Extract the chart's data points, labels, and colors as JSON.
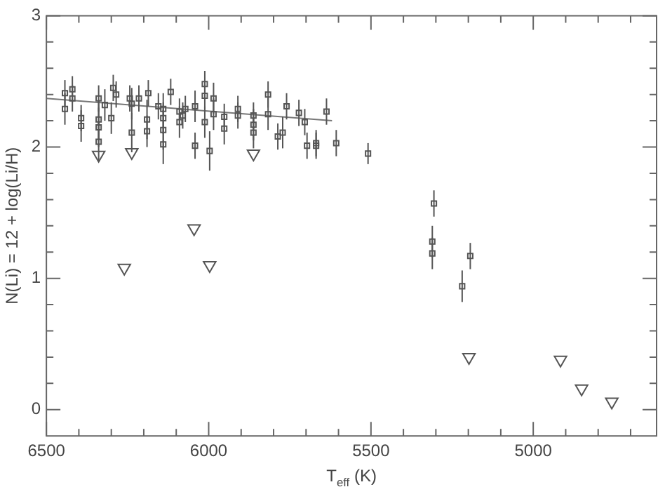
{
  "chart_data": {
    "type": "scatter",
    "xlabel": "T$_{eff}$ (K)",
    "ylabel": "N(Li) = 12 + log(Li/H)",
    "xlim": [
      6500,
      4620
    ],
    "ylim": [
      -0.2,
      3
    ],
    "xticks": [
      {
        "value": 6500,
        "label": "6500"
      },
      {
        "value": 6400,
        "label": null
      },
      {
        "value": 6300,
        "label": null
      },
      {
        "value": 6200,
        "label": null
      },
      {
        "value": 6100,
        "label": null
      },
      {
        "value": 6000,
        "label": "6000"
      },
      {
        "value": 5900,
        "label": null
      },
      {
        "value": 5800,
        "label": null
      },
      {
        "value": 5700,
        "label": null
      },
      {
        "value": 5600,
        "label": null
      },
      {
        "value": 5500,
        "label": "5500"
      },
      {
        "value": 5400,
        "label": null
      },
      {
        "value": 5300,
        "label": null
      },
      {
        "value": 5200,
        "label": null
      },
      {
        "value": 5100,
        "label": null
      },
      {
        "value": 5000,
        "label": "5000"
      },
      {
        "value": 4900,
        "label": null
      },
      {
        "value": 4800,
        "label": null
      },
      {
        "value": 4700,
        "label": null
      }
    ],
    "yticks": [
      0,
      {
        "value": 0.2,
        "label": null
      },
      {
        "value": 0.4,
        "label": null
      },
      {
        "value": 0.6,
        "label": null
      },
      {
        "value": 0.8,
        "label": null
      },
      1,
      {
        "value": 1.2,
        "label": null
      },
      {
        "value": 1.4,
        "label": null
      },
      {
        "value": 1.6,
        "label": null
      },
      {
        "value": 1.8,
        "label": null
      },
      2,
      {
        "value": 2.2,
        "label": null
      },
      {
        "value": 2.4,
        "label": null
      },
      {
        "value": 2.6,
        "label": null
      },
      {
        "value": 2.8,
        "label": null
      },
      3
    ],
    "series": [
      {
        "color": "#555555",
        "marker": "square",
        "x": [
          6443,
          6443,
          6420,
          6420,
          6393,
          6393,
          6339,
          6320,
          6339,
          6339,
          6339,
          6300,
          6294,
          6285,
          6243,
          6237,
          6237,
          6215,
          6186,
          6190,
          6190,
          6155,
          6140,
          6140,
          6140,
          6140,
          6117,
          6090,
          6090,
          6080,
          6072,
          6042,
          6042,
          6012,
          6012,
          6012,
          5997,
          5985,
          5985,
          5952,
          5952,
          5910,
          5910,
          5862,
          5862,
          5862,
          5817,
          5817,
          5787,
          5772,
          5760,
          5722,
          5704,
          5697,
          5669,
          5669,
          5637,
          5607,
          5509,
          5306,
          5311,
          5311,
          5194,
          5219
        ],
        "values": [
          2.41,
          2.29,
          2.44,
          2.37,
          2.16,
          2.22,
          2.37,
          2.32,
          2.21,
          2.15,
          2.04,
          2.22,
          2.45,
          2.4,
          2.37,
          2.33,
          2.11,
          2.37,
          2.41,
          2.21,
          2.12,
          2.31,
          2.29,
          2.22,
          2.13,
          2.02,
          2.42,
          2.27,
          2.19,
          2.24,
          2.29,
          2.01,
          2.31,
          2.39,
          2.48,
          2.19,
          1.97,
          2.37,
          2.25,
          2.14,
          2.23,
          2.29,
          2.24,
          2.24,
          2.17,
          2.11,
          2.4,
          2.25,
          2.08,
          2.11,
          2.31,
          2.26,
          2.19,
          2.01,
          2.01,
          2.03,
          2.27,
          2.03,
          1.95,
          1.57,
          1.28,
          1.19,
          1.17,
          0.94
        ],
        "errors": [
          0.1,
          0.12,
          0.1,
          0.1,
          0.12,
          0.1,
          0.1,
          0.12,
          0.15,
          0.15,
          0.15,
          0.12,
          0.1,
          0.1,
          0.1,
          0.12,
          0.15,
          0.1,
          0.1,
          0.15,
          0.12,
          0.1,
          0.12,
          0.12,
          0.15,
          0.15,
          0.1,
          0.1,
          0.12,
          0.1,
          0.1,
          0.1,
          0.12,
          0.1,
          0.1,
          0.12,
          0.15,
          0.12,
          0.12,
          0.12,
          0.1,
          0.1,
          0.1,
          0.1,
          0.12,
          0.12,
          0.1,
          0.12,
          0.1,
          0.12,
          0.1,
          0.1,
          0.1,
          0.1,
          0.1,
          0.1,
          0.1,
          0.1,
          0.08,
          0.1,
          0.12,
          0.12,
          0.1,
          0.12
        ]
      },
      {
        "color": "#555555",
        "marker": "triangle",
        "x": [
          6339,
          6237,
          5862,
          6045,
          6260,
          5997,
          5198,
          4916,
          4851,
          4758
        ],
        "values": [
          1.94,
          1.96,
          1.95,
          1.38,
          1.08,
          1.1,
          0.4,
          0.38,
          0.16,
          0.06
        ]
      },
      {
        "type": "line",
        "color": "#777777",
        "marker": "none",
        "x": [
          6500,
          5620
        ],
        "values": [
          2.37,
          2.2
        ]
      }
    ]
  }
}
